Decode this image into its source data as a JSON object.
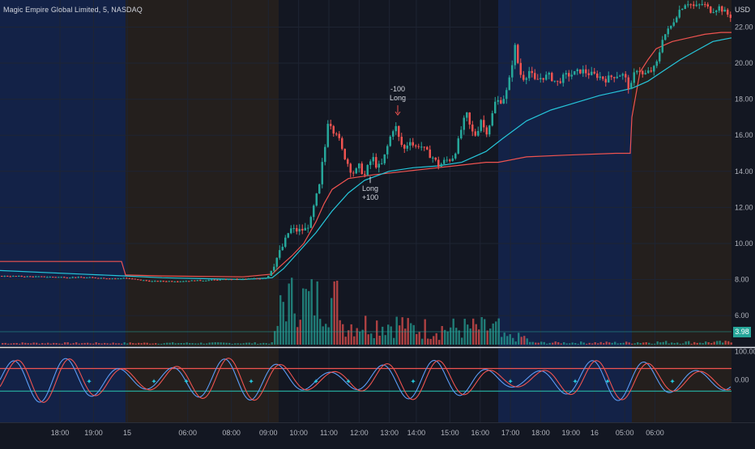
{
  "header": {
    "title": "Magic Empire Global Limited, 5, NASDAQ",
    "currency": "USD"
  },
  "colors": {
    "background": "#131722",
    "session_pre": "#132247",
    "session_after": "#241f1d",
    "candle_up": "#26a69a",
    "candle_down": "#ef5350",
    "vwap": "#ef5350",
    "ema": "#26c6da",
    "osc_upper": "#ef5350",
    "osc_lower": "#26a69a",
    "price_label_bg": "#26a69a"
  },
  "sessions": [
    {
      "type": "pre",
      "start": 0,
      "end": 155
    },
    {
      "type": "after",
      "start": 155,
      "end": 344
    },
    {
      "type": "regular",
      "start": 344,
      "end": 615
    },
    {
      "type": "pre",
      "start": 615,
      "end": 780
    },
    {
      "type": "after",
      "start": 780,
      "end": 903
    }
  ],
  "chart_data": [
    {
      "type": "candlestick",
      "title": "Magic Empire Global Limited, 5, NASDAQ",
      "unit": "USD",
      "x_ticks": [
        "18:00",
        "19:00",
        "15",
        "06:00",
        "08:00",
        "09:00",
        "10:00",
        "11:00",
        "12:00",
        "13:00",
        "14:00",
        "15:00",
        "16:00",
        "17:00",
        "18:00",
        "19:00",
        "16",
        "05:00",
        "06:00"
      ],
      "y_ticks": [
        "22.00",
        "20.00",
        "18.00",
        "16.00",
        "14.00",
        "12.00",
        "10.00",
        "8.00",
        "6.00"
      ],
      "ylim": [
        4.3,
        23.5
      ],
      "price_path": {
        "x": [
          0,
          60,
          120,
          150,
          155,
          170,
          190,
          230,
          280,
          320,
          332,
          336,
          345,
          352,
          360,
          370,
          380,
          386,
          392,
          396,
          400,
          404,
          408,
          412,
          418,
          424,
          430,
          436,
          440,
          446,
          452,
          456,
          462,
          468,
          474,
          480,
          486,
          490,
          496,
          502,
          508,
          514,
          520,
          528,
          536,
          544,
          552,
          560,
          566,
          572,
          578,
          584,
          590,
          596,
          602,
          608,
          614,
          620,
          626,
          630,
          634,
          638,
          642,
          646,
          650,
          656,
          662,
          670,
          680,
          690,
          700,
          710,
          720,
          730,
          740,
          750,
          760,
          770,
          776,
          780,
          784,
          790,
          796,
          802,
          808,
          814,
          820,
          830,
          840,
          850,
          860,
          870,
          880,
          890,
          903
        ],
        "price": [
          8.2,
          8.15,
          8.1,
          8.05,
          8.1,
          8.0,
          7.9,
          7.92,
          8.0,
          8.05,
          8.1,
          8.4,
          9.3,
          9.9,
          10.8,
          10.7,
          10.8,
          11.3,
          12.5,
          13.0,
          14.4,
          15.5,
          17.2,
          16.3,
          16.2,
          15.2,
          14.6,
          14.0,
          13.9,
          14.3,
          13.7,
          14.2,
          14.8,
          14.2,
          14.4,
          15.3,
          16.2,
          16.6,
          15.6,
          15.2,
          15.8,
          15.3,
          15.5,
          15.1,
          14.8,
          14.3,
          14.6,
          14.7,
          15.3,
          16.4,
          17.2,
          16.2,
          16.0,
          16.9,
          16.1,
          16.8,
          17.9,
          17.9,
          18.2,
          18.8,
          19.9,
          20.9,
          19.9,
          19.2,
          19.2,
          19.6,
          19.0,
          19.2,
          19.3,
          18.9,
          19.3,
          19.4,
          19.6,
          19.4,
          19.3,
          19.1,
          19.3,
          19.4,
          19.0,
          18.4,
          19.3,
          19.8,
          19.3,
          19.5,
          19.6,
          20.1,
          21.4,
          22.0,
          22.9,
          23.4,
          23.1,
          23.3,
          22.9,
          23.1,
          22.6
        ]
      },
      "series": [
        {
          "name": "",
          "kind": "line",
          "color": "#ef5350",
          "x": [
            0,
            150,
            155,
            200,
            300,
            336,
            345,
            360,
            375,
            390,
            400,
            410,
            430,
            460,
            500,
            540,
            560,
            580,
            600,
            615,
            650,
            700,
            760,
            778,
            780,
            790,
            800,
            810,
            820,
            830,
            850,
            870,
            890,
            903
          ],
          "y": [
            9.0,
            9.0,
            8.25,
            8.2,
            8.15,
            8.3,
            8.7,
            9.3,
            10.0,
            11.2,
            12.2,
            13.0,
            13.6,
            13.8,
            14.0,
            14.2,
            14.3,
            14.4,
            14.5,
            14.5,
            14.8,
            14.9,
            15.0,
            15.0,
            17.0,
            19.5,
            20.2,
            20.8,
            21.0,
            21.2,
            21.4,
            21.6,
            21.7,
            21.7
          ]
        },
        {
          "name": "",
          "kind": "line",
          "color": "#26c6da",
          "x": [
            0,
            100,
            155,
            200,
            250,
            300,
            336,
            350,
            370,
            390,
            410,
            430,
            450,
            480,
            510,
            540,
            570,
            600,
            620,
            650,
            680,
            710,
            740,
            760,
            780,
            800,
            820,
            840,
            860,
            880,
            903
          ],
          "y": [
            8.5,
            8.3,
            8.2,
            8.1,
            8.05,
            8.0,
            8.1,
            8.6,
            9.6,
            10.6,
            11.8,
            12.8,
            13.5,
            14.0,
            14.2,
            14.3,
            14.5,
            15.1,
            15.8,
            16.8,
            17.4,
            17.8,
            18.2,
            18.4,
            18.6,
            19.0,
            19.6,
            20.2,
            20.7,
            21.2,
            21.4
          ]
        }
      ],
      "trades": [
        {
          "label": "Long",
          "qty": "+100",
          "price": 13.8
        },
        {
          "label": "Long",
          "qty": "-100",
          "price": 16.9
        }
      ],
      "last_price": "3.98",
      "volume_label": "Volume"
    },
    {
      "type": "line",
      "y_ticks": [
        "100.00",
        "0.00"
      ],
      "ylim": [
        -150,
        110
      ],
      "upper_level": 40,
      "lower_level": -40,
      "oscillator_period": 65,
      "oscillator_amplitude": 75
    }
  ]
}
